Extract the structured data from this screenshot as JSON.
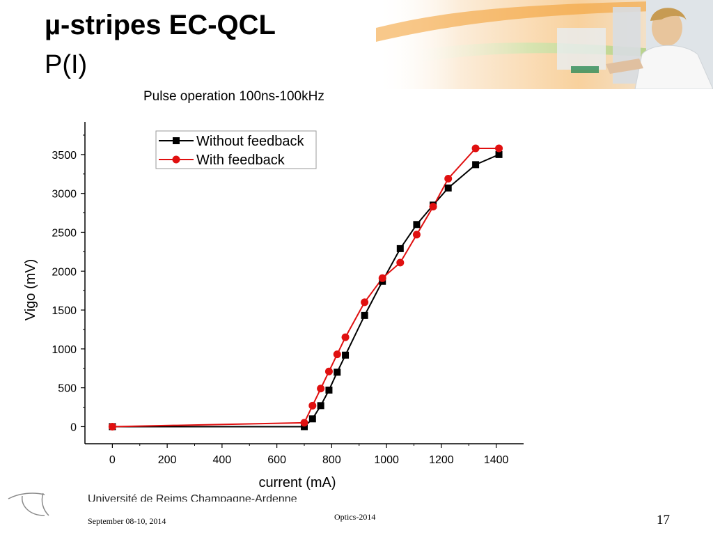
{
  "slide": {
    "title": "µ-stripes EC-QCL",
    "subtitle": "P(I)",
    "caption": "Pulse operation 100ns-100kHz",
    "university": "Université de Reims Champagne-Ardenne",
    "footer_date": "September 08-10, 2014",
    "footer_center": "Optics-2014",
    "page_number": "17"
  },
  "colors": {
    "without_feedback": "#000000",
    "with_feedback": "#e01010",
    "banner_orange": "#f39a2a",
    "banner_green": "#7dbb3a"
  },
  "chart_data": {
    "type": "line",
    "xlabel": "current (mA)",
    "ylabel": "Vigo (mV)",
    "xlim": [
      -100,
      1500
    ],
    "ylim": [
      -220,
      3920
    ],
    "xticks": [
      0,
      200,
      400,
      600,
      800,
      1000,
      1200,
      1400
    ],
    "yticks": [
      0,
      500,
      1000,
      1500,
      2000,
      2500,
      3000,
      3500
    ],
    "legend_position": "top-left",
    "grid": false,
    "series": [
      {
        "name": "Without feedback",
        "marker": "square",
        "color": "#000000",
        "x": [
          0,
          700,
          730,
          760,
          790,
          820,
          850,
          920,
          985,
          1050,
          1110,
          1170,
          1225,
          1325,
          1410
        ],
        "y": [
          0,
          0,
          100,
          270,
          470,
          700,
          920,
          1430,
          1870,
          2290,
          2600,
          2850,
          3070,
          3370,
          3500
        ]
      },
      {
        "name": "With feedback",
        "marker": "circle",
        "color": "#e01010",
        "x": [
          0,
          700,
          730,
          760,
          790,
          820,
          850,
          920,
          985,
          1050,
          1110,
          1170,
          1225,
          1325,
          1410
        ],
        "y": [
          0,
          50,
          270,
          490,
          710,
          930,
          1150,
          1600,
          1910,
          2110,
          2470,
          2830,
          3190,
          3580,
          3580
        ]
      }
    ]
  }
}
